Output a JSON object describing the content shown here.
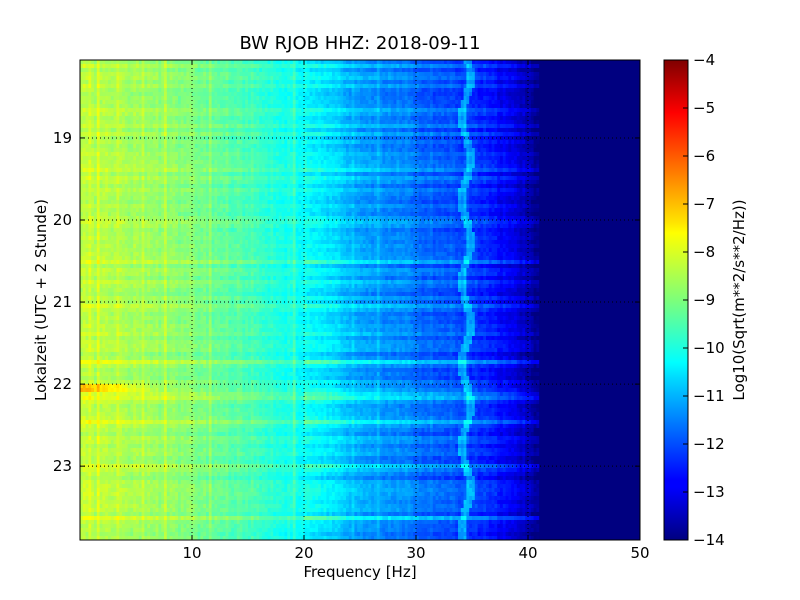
{
  "chart_data": {
    "type": "heatmap",
    "title": "BW RJOB HHZ: 2018-09-11",
    "xlabel": "Frequency [Hz]",
    "ylabel": "Lokalzeit (UTC + 2 Stunde)",
    "xlim": [
      0,
      50
    ],
    "ylim": [
      18.05,
      23.9
    ],
    "x_ticks": [
      10,
      20,
      30,
      40,
      50
    ],
    "y_ticks": [
      19,
      20,
      21,
      22,
      23
    ],
    "grid": true,
    "colorbar": {
      "label": "Log10(Sqrt(m**2/s**2/Hz))",
      "range": [
        -14,
        -4
      ],
      "ticks": [
        -4,
        -5,
        -6,
        -7,
        -8,
        -9,
        -10,
        -11,
        -12,
        -13,
        -14
      ],
      "colormap": "jet"
    },
    "profile": {
      "frequency": [
        0,
        5,
        10,
        15,
        20,
        25,
        30,
        35,
        38,
        40,
        41,
        50
      ],
      "log10_amplitude": [
        -8.4,
        -8.6,
        -9.0,
        -9.5,
        -10.2,
        -11.0,
        -11.6,
        -12.1,
        -12.8,
        -13.4,
        -14,
        -14
      ]
    },
    "features": {
      "spectral_line_hz": 34.5,
      "strong_event_time": 22.05,
      "strong_event_freq_range": [
        0,
        7
      ]
    }
  }
}
